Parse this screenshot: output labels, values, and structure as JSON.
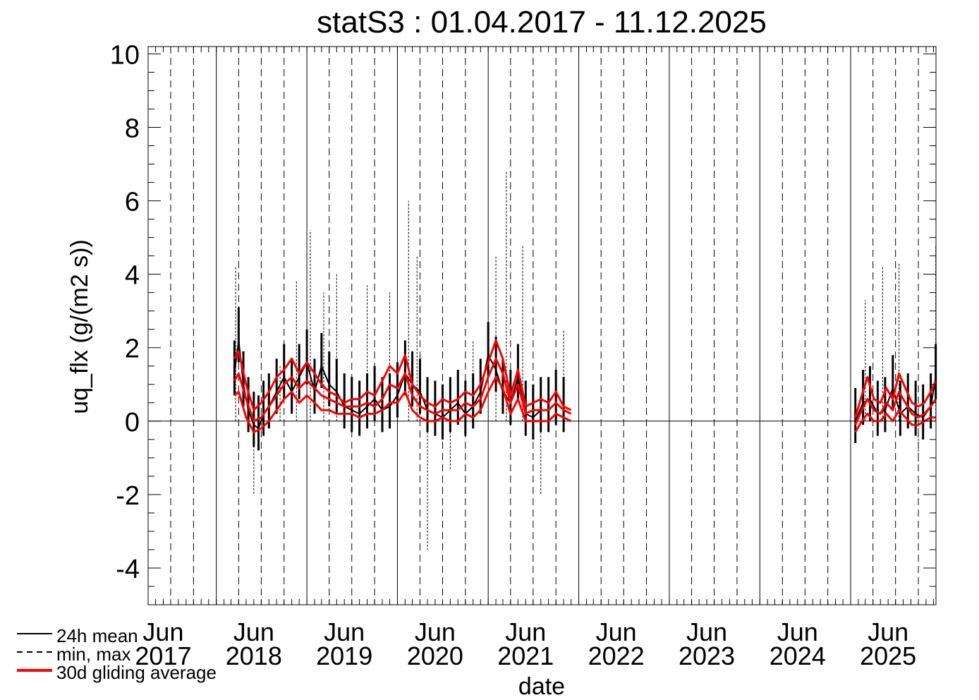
{
  "chart_data": {
    "type": "line",
    "title": "statS3 : 01.04.2017 - 11.12.2025",
    "xlabel": "date",
    "ylabel": "uq_flx (g/(m2 s))",
    "ylim": [
      -5,
      10.2
    ],
    "xlim": [
      "2017-04-01",
      "2025-12-11"
    ],
    "grid": true,
    "y_ticks": [
      "-4",
      "-2",
      "0",
      "2",
      "4",
      "6",
      "8",
      "10"
    ],
    "x_ticks": [
      {
        "month": "Jun",
        "year": "2017",
        "date": "2017-06-01"
      },
      {
        "month": "Jun",
        "year": "2018",
        "date": "2018-06-01"
      },
      {
        "month": "Jun",
        "year": "2019",
        "date": "2019-06-01"
      },
      {
        "month": "Jun",
        "year": "2020",
        "date": "2020-06-01"
      },
      {
        "month": "Jun",
        "year": "2021",
        "date": "2021-06-01"
      },
      {
        "month": "Jun",
        "year": "2022",
        "date": "2022-06-01"
      },
      {
        "month": "Jun",
        "year": "2023",
        "date": "2023-06-01"
      },
      {
        "month": "Jun",
        "year": "2024",
        "date": "2024-06-01"
      },
      {
        "month": "Jun",
        "year": "2025",
        "date": "2025-06-01"
      }
    ],
    "year_lines": [
      "2018-01-01",
      "2019-01-01",
      "2020-01-01",
      "2021-01-01",
      "2022-01-01",
      "2023-01-01",
      "2024-01-01",
      "2025-01-01"
    ],
    "legend": {
      "placement": "bottom-left",
      "entries": [
        {
          "label": "24h mean",
          "style": "solid",
          "color": "#000000"
        },
        {
          "label": "min, max",
          "style": "dashed",
          "color": "#000000"
        },
        {
          "label": "30d gliding average",
          "style": "solid-thick",
          "color": "#ff0000"
        }
      ]
    },
    "series": [
      {
        "name": "24h mean",
        "color": "#000000",
        "segments": [
          {
            "x": [
              "2018-03-15",
              "2018-04-01",
              "2018-04-20",
              "2018-05-10",
              "2018-06-01",
              "2018-06-20",
              "2018-07-10",
              "2018-08-01",
              "2018-09-01",
              "2018-10-01",
              "2018-11-01",
              "2018-12-01",
              "2019-01-01",
              "2019-02-01",
              "2019-03-01",
              "2019-04-01",
              "2019-05-01",
              "2019-06-01",
              "2019-07-01",
              "2019-08-01",
              "2019-09-01",
              "2019-10-01",
              "2019-11-01",
              "2019-12-01",
              "2020-01-01",
              "2020-02-01",
              "2020-03-01",
              "2020-04-01",
              "2020-05-01",
              "2020-06-01",
              "2020-07-01",
              "2020-08-01",
              "2020-09-01",
              "2020-10-01",
              "2020-11-01",
              "2020-12-01",
              "2021-01-01",
              "2021-02-01",
              "2021-03-01",
              "2021-04-01",
              "2021-05-01",
              "2021-06-01",
              "2021-07-01",
              "2021-08-01",
              "2021-09-01",
              "2021-10-01",
              "2021-11-01"
            ],
            "y": [
              1.3,
              2.2,
              1.0,
              0.3,
              -0.1,
              -0.2,
              0.2,
              0.4,
              0.8,
              1.2,
              0.8,
              1.2,
              1.6,
              0.8,
              1.5,
              1.0,
              0.8,
              0.4,
              0.3,
              0.2,
              0.4,
              0.6,
              0.3,
              0.4,
              0.7,
              1.3,
              1.0,
              0.8,
              0.3,
              0.2,
              0.1,
              0.3,
              0.5,
              0.2,
              0.4,
              0.8,
              1.8,
              1.4,
              0.8,
              0.5,
              1.2,
              0.2,
              0.1,
              0.3,
              0.3,
              0.5,
              0.3
            ]
          },
          {
            "x": [
              "2025-01-20",
              "2025-02-20",
              "2025-03-20",
              "2025-04-20",
              "2025-05-20",
              "2025-06-20",
              "2025-07-20",
              "2025-08-20",
              "2025-09-20",
              "2025-10-20",
              "2025-11-20",
              "2025-12-10"
            ],
            "y": [
              0.0,
              0.5,
              0.6,
              0.2,
              0.3,
              0.9,
              0.2,
              0.4,
              0.2,
              0.1,
              0.4,
              1.2
            ]
          }
        ]
      },
      {
        "name": "min, max",
        "color": "#000000",
        "segments": [
          {
            "x": [
              "2018-03-20",
              "2018-06-01",
              "2018-09-15",
              "2018-11-20",
              "2019-01-15",
              "2019-03-10",
              "2019-05-01",
              "2019-09-01",
              "2019-12-01",
              "2020-02-15",
              "2020-03-20",
              "2020-05-01",
              "2020-08-01",
              "2020-11-01",
              "2021-02-01",
              "2021-03-15",
              "2021-05-20",
              "2021-08-01",
              "2021-11-01"
            ],
            "y": [
              4.2,
              -2.0,
              1.5,
              3.8,
              5.2,
              3.5,
              4.0,
              3.7,
              3.5,
              6.0,
              4.5,
              -3.5,
              -1.3,
              2.2,
              4.5,
              6.8,
              4.8,
              -2.0,
              2.5
            ]
          },
          {
            "x": [
              "2025-03-01",
              "2025-05-10",
              "2025-07-15",
              "2025-10-01",
              "2025-12-10"
            ],
            "y": [
              3.3,
              4.2,
              4.3,
              -1.1,
              4.8
            ]
          }
        ]
      },
      {
        "name": "30d gliding average",
        "color": "#ff0000",
        "bands": [
          {
            "x": [
              "2018-03-15",
              "2018-04-01",
              "2018-05-01",
              "2018-06-01",
              "2018-07-01",
              "2018-08-01",
              "2018-09-01",
              "2018-10-01",
              "2018-11-01",
              "2018-12-01",
              "2019-01-01",
              "2019-02-01",
              "2019-03-01",
              "2019-04-01",
              "2019-05-01",
              "2019-06-01",
              "2019-07-01",
              "2019-08-01",
              "2019-09-01",
              "2019-10-01",
              "2019-11-01",
              "2019-12-01",
              "2020-01-01",
              "2020-02-01",
              "2020-03-01",
              "2020-04-01",
              "2020-05-01",
              "2020-06-01",
              "2020-07-01",
              "2020-08-01",
              "2020-09-01",
              "2020-10-01",
              "2020-11-01",
              "2020-12-01",
              "2021-01-01",
              "2021-02-01",
              "2021-03-01",
              "2021-04-01",
              "2021-05-01",
              "2021-06-01",
              "2021-07-01",
              "2021-08-01",
              "2021-09-01",
              "2021-10-01",
              "2021-11-01",
              "2021-12-01"
            ],
            "upper": [
              1.7,
              1.9,
              1.0,
              0.3,
              0.5,
              0.8,
              1.2,
              1.4,
              1.7,
              1.3,
              1.6,
              1.3,
              1.0,
              0.8,
              0.7,
              0.5,
              0.6,
              0.6,
              0.8,
              0.7,
              1.1,
              1.5,
              1.3,
              1.8,
              1.0,
              0.7,
              0.5,
              0.4,
              0.6,
              0.5,
              0.6,
              0.8,
              0.7,
              1.0,
              1.6,
              2.2,
              1.7,
              0.7,
              1.4,
              0.4,
              0.5,
              0.6,
              0.5,
              0.8,
              0.4,
              0.3
            ],
            "mean": [
              1.1,
              1.3,
              0.6,
              0.0,
              0.1,
              0.4,
              0.7,
              1.0,
              1.2,
              0.9,
              1.1,
              0.9,
              0.7,
              0.6,
              0.5,
              0.4,
              0.4,
              0.4,
              0.5,
              0.4,
              0.6,
              1.0,
              0.9,
              1.3,
              0.7,
              0.4,
              0.3,
              0.2,
              0.3,
              0.3,
              0.3,
              0.5,
              0.4,
              0.6,
              1.2,
              1.7,
              1.3,
              0.5,
              1.0,
              0.2,
              0.3,
              0.3,
              0.3,
              0.5,
              0.3,
              0.2
            ],
            "lower": [
              0.7,
              0.8,
              0.1,
              -0.3,
              -0.2,
              0.0,
              0.3,
              0.6,
              0.8,
              0.5,
              0.7,
              0.5,
              0.3,
              0.3,
              0.2,
              0.2,
              0.2,
              0.1,
              0.2,
              0.2,
              0.3,
              0.5,
              0.5,
              0.8,
              0.3,
              0.1,
              0.0,
              0.0,
              0.1,
              0.0,
              0.0,
              0.2,
              0.1,
              0.3,
              0.8,
              1.2,
              0.9,
              0.2,
              0.6,
              0.0,
              0.0,
              0.0,
              0.0,
              0.2,
              0.1,
              0.0
            ]
          },
          {
            "x": [
              "2025-01-20",
              "2025-02-15",
              "2025-03-10",
              "2025-04-05",
              "2025-05-01",
              "2025-05-25",
              "2025-06-20",
              "2025-07-15",
              "2025-08-10",
              "2025-09-05",
              "2025-10-01",
              "2025-10-25",
              "2025-11-20",
              "2025-12-10"
            ],
            "upper": [
              0.1,
              0.7,
              1.2,
              0.6,
              0.5,
              0.9,
              0.6,
              1.3,
              0.9,
              0.5,
              0.4,
              0.5,
              0.8,
              1.1
            ],
            "mean": [
              -0.1,
              0.3,
              0.6,
              0.3,
              0.2,
              0.5,
              0.3,
              0.8,
              0.5,
              0.2,
              0.1,
              0.2,
              0.4,
              0.6
            ],
            "lower": [
              -0.3,
              0.0,
              0.2,
              0.0,
              0.0,
              0.2,
              0.0,
              0.3,
              0.1,
              -0.1,
              -0.1,
              0.0,
              0.1,
              0.1
            ]
          }
        ]
      }
    ]
  }
}
